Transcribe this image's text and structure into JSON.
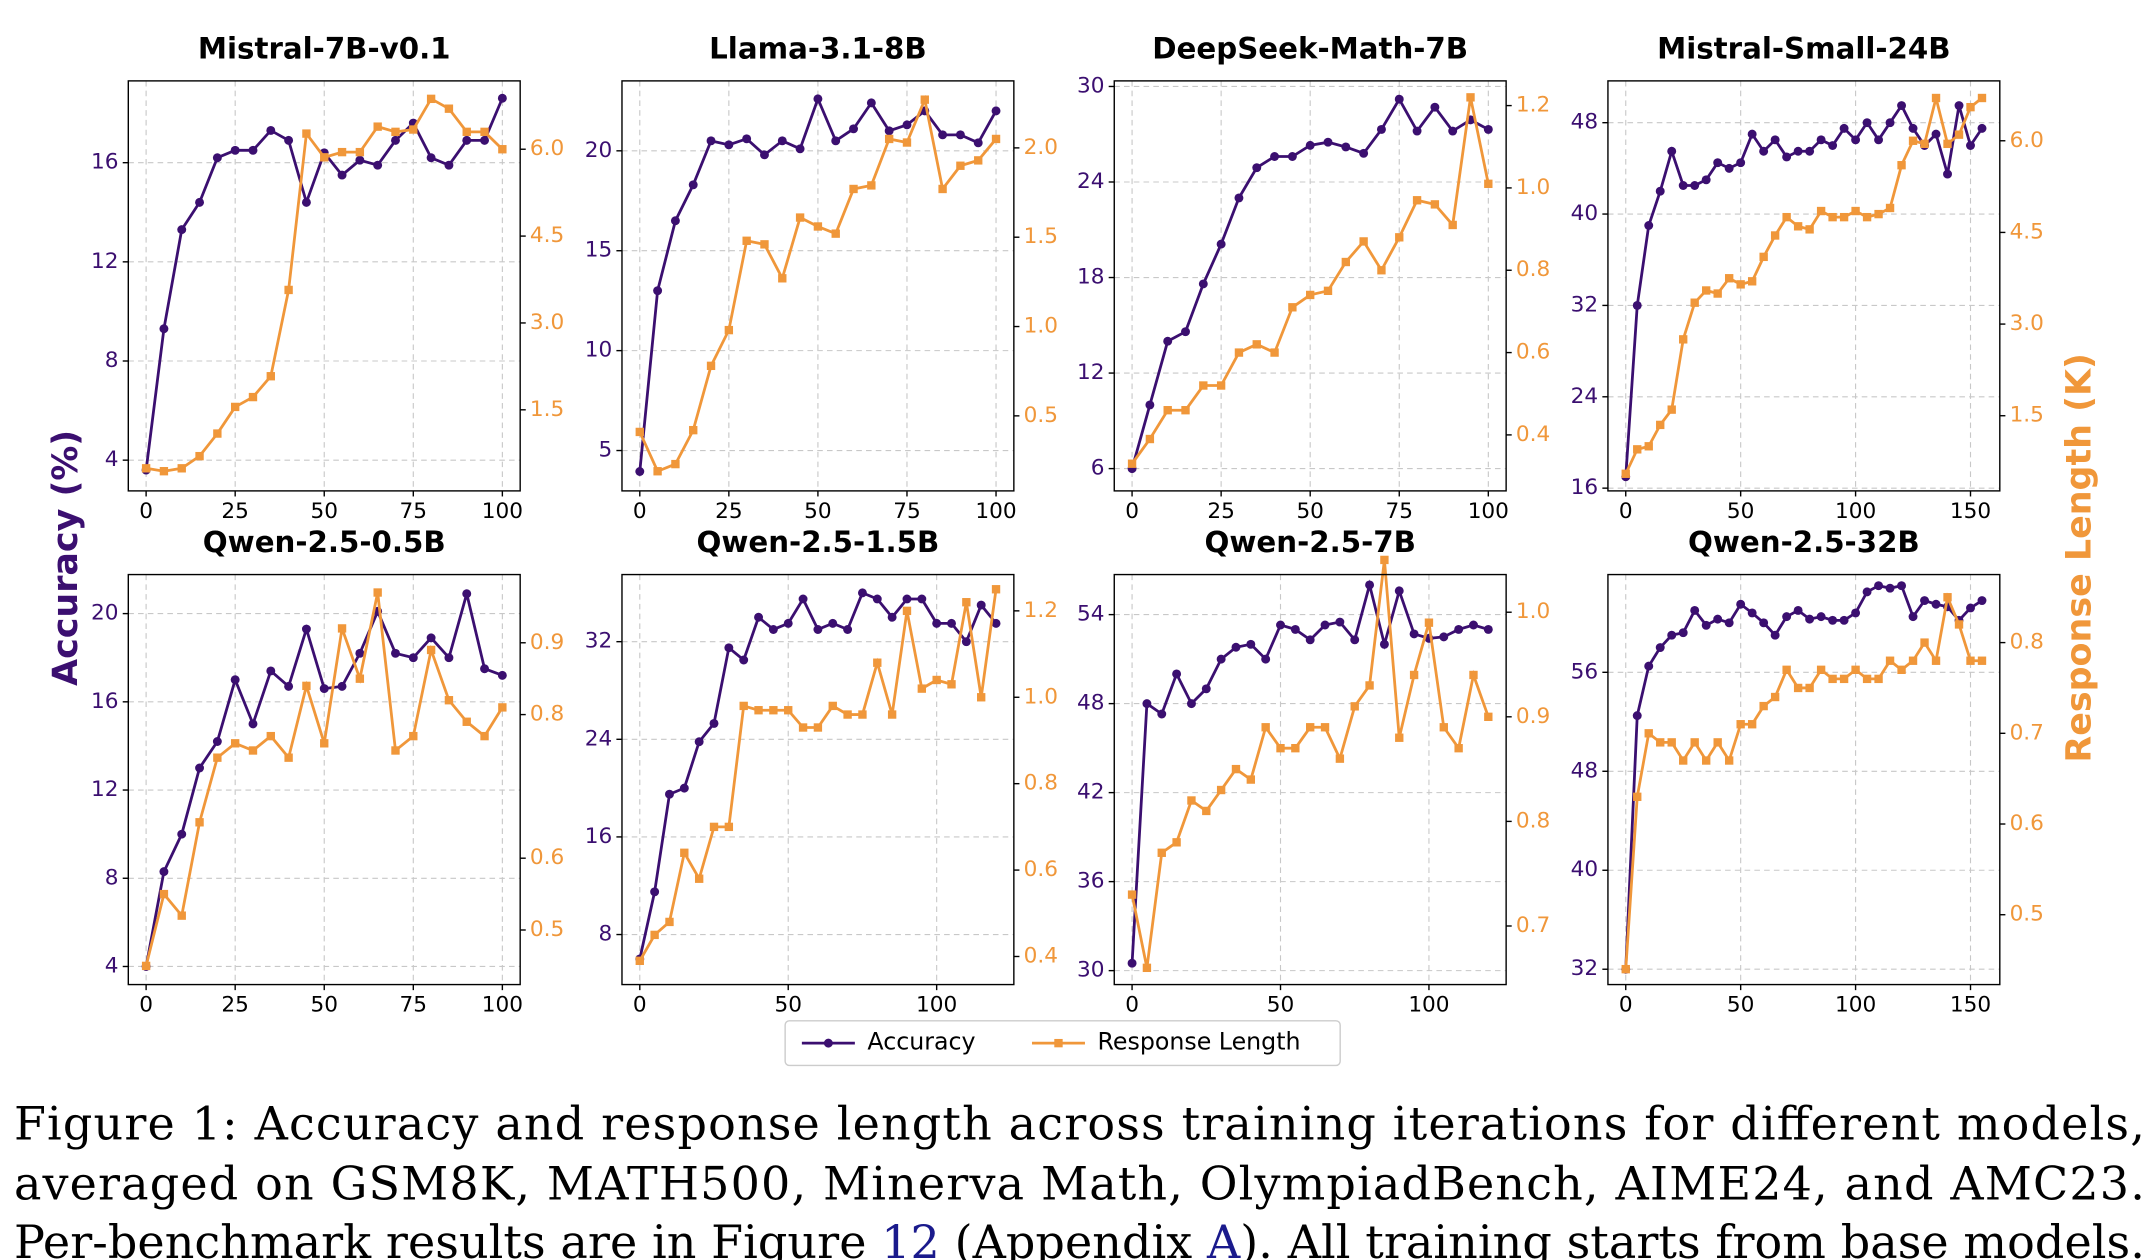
{
  "chart_data": [
    {
      "type": "line",
      "title": "Mistral-7B-v0.1",
      "grid": true,
      "x": [
        0,
        5,
        10,
        15,
        20,
        25,
        30,
        35,
        40,
        45,
        50,
        55,
        60,
        65,
        70,
        75,
        80,
        85,
        90,
        95,
        100
      ],
      "xlim": [
        -5,
        105
      ],
      "xticks": [
        0,
        25,
        50,
        75,
        100
      ],
      "ylim": [
        2.76,
        19.3
      ],
      "yticks": [
        4,
        8,
        12,
        16
      ],
      "y2lim": [
        0.1,
        7.18
      ],
      "y2ticks": [
        1.5,
        {
          "value": 3,
          "label": "3.0"
        },
        4.5,
        {
          "value": 6,
          "label": "6.0"
        }
      ],
      "series": [
        {
          "name": "Accuracy",
          "color": "#3b0f70",
          "marker": "circle",
          "values": [
            3.6,
            9.3,
            13.3,
            14.4,
            16.2,
            16.5,
            16.5,
            17.3,
            16.9,
            14.4,
            16.4,
            15.5,
            16.1,
            15.9,
            16.9,
            17.6,
            16.2,
            15.9,
            16.9,
            16.9,
            18.6
          ]
        },
        {
          "name": "Response Length",
          "color": "#f0973a",
          "marker": "square",
          "axis": "y2",
          "values": [
            0.49,
            0.44,
            0.49,
            0.7,
            1.09,
            1.55,
            1.72,
            2.08,
            3.57,
            6.27,
            5.86,
            5.95,
            5.95,
            6.39,
            6.3,
            6.34,
            6.87,
            6.7,
            6.3,
            6.3,
            6.0
          ]
        }
      ]
    },
    {
      "type": "line",
      "title": "Llama-3.1-8B",
      "grid": true,
      "x": [
        0,
        5,
        10,
        15,
        20,
        25,
        30,
        35,
        40,
        45,
        50,
        55,
        60,
        65,
        70,
        75,
        80,
        85,
        90,
        95,
        100
      ],
      "xlim": [
        -5,
        105
      ],
      "xticks": [
        0,
        25,
        50,
        75,
        100
      ],
      "ylim": [
        2.98,
        23.5
      ],
      "yticks": [
        5,
        10,
        15,
        20
      ],
      "y2lim": [
        0.08,
        2.375
      ],
      "y2ticks": [
        0.5,
        {
          "value": 1,
          "label": "1.0"
        },
        1.5,
        {
          "value": 2,
          "label": "2.0"
        }
      ],
      "series": [
        {
          "name": "Accuracy",
          "color": "#3b0f70",
          "marker": "circle",
          "values": [
            3.95,
            13,
            16.5,
            18.3,
            20.5,
            20.3,
            20.6,
            19.8,
            20.5,
            20.1,
            22.6,
            20.5,
            21.1,
            22.4,
            21,
            21.3,
            22,
            20.8,
            20.8,
            20.4,
            22
          ]
        },
        {
          "name": "Response Length",
          "color": "#f0973a",
          "marker": "square",
          "axis": "y2",
          "values": [
            0.41,
            0.19,
            0.23,
            0.42,
            0.78,
            0.98,
            1.48,
            1.46,
            1.27,
            1.61,
            1.56,
            1.52,
            1.77,
            1.79,
            2.05,
            2.03,
            2.27,
            1.77,
            1.9,
            1.93,
            2.05
          ]
        }
      ]
    },
    {
      "type": "line",
      "title": "DeepSeek-Math-7B",
      "grid": true,
      "x": [
        0,
        5,
        10,
        15,
        20,
        25,
        30,
        35,
        40,
        45,
        50,
        55,
        60,
        65,
        70,
        75,
        80,
        85,
        90,
        95,
        100
      ],
      "xlim": [
        -5,
        105
      ],
      "xticks": [
        0,
        25,
        50,
        75,
        100
      ],
      "ylim": [
        4.6,
        30.35
      ],
      "yticks": [
        6,
        12,
        18,
        24,
        30
      ],
      "y2lim": [
        0.264,
        1.26
      ],
      "y2ticks": [
        0.4,
        0.6,
        0.8,
        {
          "value": 1,
          "label": "1.0"
        },
        1.2
      ],
      "series": [
        {
          "name": "Accuracy",
          "color": "#3b0f70",
          "marker": "circle",
          "values": [
            6,
            10,
            14,
            14.6,
            17.6,
            20.1,
            23,
            24.9,
            25.6,
            25.6,
            26.3,
            26.5,
            26.2,
            25.8,
            27.3,
            29.2,
            27.2,
            28.7,
            27.2,
            27.9,
            27.3
          ]
        },
        {
          "name": "Response Length",
          "color": "#f0973a",
          "marker": "square",
          "axis": "y2",
          "values": [
            0.33,
            0.39,
            0.46,
            0.46,
            0.52,
            0.52,
            0.6,
            0.62,
            0.6,
            0.71,
            0.74,
            0.75,
            0.82,
            0.87,
            0.8,
            0.88,
            0.97,
            0.96,
            0.91,
            1.22,
            1.01
          ]
        }
      ]
    },
    {
      "type": "line",
      "title": "Mistral-Small-24B",
      "grid": true,
      "x": [
        0,
        5,
        10,
        15,
        20,
        25,
        30,
        35,
        40,
        45,
        50,
        55,
        60,
        65,
        70,
        75,
        80,
        85,
        90,
        95,
        100,
        105,
        110,
        115,
        120,
        125,
        130,
        135,
        140,
        145,
        150,
        155
      ],
      "xlim": [
        -7.75,
        162.75
      ],
      "xticks": [
        0,
        50,
        100,
        150
      ],
      "ylim": [
        15.76,
        51.66
      ],
      "yticks": [
        16,
        24,
        32,
        40,
        48
      ],
      "y2lim": [
        0.27,
        6.98
      ],
      "y2ticks": [
        1.5,
        {
          "value": 3,
          "label": "3.0"
        },
        4.5,
        {
          "value": 6,
          "label": "6.0"
        }
      ],
      "series": [
        {
          "name": "Accuracy",
          "color": "#3b0f70",
          "marker": "circle",
          "values": [
            17,
            32,
            39,
            42,
            45.5,
            42.5,
            42.5,
            43,
            44.5,
            44,
            44.5,
            47,
            45.5,
            46.5,
            45,
            45.5,
            45.5,
            46.5,
            46,
            47.5,
            46.5,
            48,
            46.5,
            48,
            49.5,
            47.5,
            46,
            47,
            43.5,
            49.5,
            46,
            47.5
          ]
        },
        {
          "name": "Response Length",
          "color": "#f0973a",
          "marker": "square",
          "axis": "y2",
          "values": [
            0.55,
            0.95,
            1.0,
            1.35,
            1.6,
            2.75,
            3.35,
            3.55,
            3.5,
            3.75,
            3.65,
            3.7,
            4.1,
            4.45,
            4.75,
            4.6,
            4.55,
            4.85,
            4.75,
            4.75,
            4.85,
            4.75,
            4.8,
            4.9,
            5.6,
            6.0,
            5.95,
            6.7,
            5.95,
            6.1,
            6.55,
            6.7
          ]
        }
      ]
    },
    {
      "type": "line",
      "title": "Qwen-2.5-0.5B",
      "grid": true,
      "x": [
        0,
        5,
        10,
        15,
        20,
        25,
        30,
        35,
        40,
        45,
        50,
        55,
        60,
        65,
        70,
        75,
        80,
        85,
        90,
        95,
        100
      ],
      "xlim": [
        -5,
        105
      ],
      "xticks": [
        0,
        25,
        50,
        75,
        100
      ],
      "ylim": [
        3.18,
        21.77
      ],
      "yticks": [
        4,
        8,
        12,
        16,
        20
      ],
      "y2lim": [
        0.424,
        0.995
      ],
      "y2ticks": [
        0.5,
        0.6,
        0.8,
        0.9
      ],
      "series": [
        {
          "name": "Accuracy",
          "color": "#3b0f70",
          "marker": "circle",
          "values": [
            4,
            8.3,
            10,
            13,
            14.2,
            17,
            15,
            17.4,
            16.7,
            19.3,
            16.6,
            16.7,
            18.2,
            20.1,
            18.2,
            18,
            18.9,
            18,
            20.9,
            17.5,
            17.2
          ]
        },
        {
          "name": "Response Length",
          "color": "#f0973a",
          "marker": "square",
          "axis": "y2",
          "values": [
            0.45,
            0.55,
            0.52,
            0.65,
            0.74,
            0.76,
            0.75,
            0.77,
            0.74,
            0.84,
            0.76,
            0.92,
            0.85,
            0.97,
            0.75,
            0.77,
            0.89,
            0.82,
            0.79,
            0.77,
            0.81
          ]
        }
      ]
    },
    {
      "type": "line",
      "title": "Qwen-2.5-1.5B",
      "grid": true,
      "x": [
        0,
        5,
        10,
        15,
        20,
        25,
        30,
        35,
        40,
        45,
        50,
        55,
        60,
        65,
        70,
        75,
        80,
        85,
        90,
        95,
        100,
        105,
        110,
        115,
        120
      ],
      "xlim": [
        -6,
        126
      ],
      "xticks": [
        0,
        50,
        100
      ],
      "ylim": [
        3.9,
        37.5
      ],
      "yticks": [
        8,
        16,
        24,
        32
      ],
      "y2lim": [
        0.335,
        1.284
      ],
      "y2ticks": [
        0.4,
        0.6,
        0.8,
        {
          "value": 1,
          "label": "1.0"
        },
        1.2
      ],
      "series": [
        {
          "name": "Accuracy",
          "color": "#3b0f70",
          "marker": "circle",
          "values": [
            6,
            11.5,
            19.5,
            20,
            23.8,
            25.3,
            31.5,
            30.5,
            34,
            33,
            33.5,
            35.5,
            33,
            33.5,
            33,
            36,
            35.5,
            34,
            35.5,
            35.5,
            33.5,
            33.5,
            32,
            35,
            33.5
          ]
        },
        {
          "name": "Response Length",
          "color": "#f0973a",
          "marker": "square",
          "axis": "y2",
          "values": [
            0.39,
            0.45,
            0.48,
            0.64,
            0.58,
            0.7,
            0.7,
            0.98,
            0.97,
            0.97,
            0.97,
            0.93,
            0.93,
            0.98,
            0.96,
            0.96,
            1.08,
            0.96,
            1.2,
            1.02,
            1.04,
            1.03,
            1.22,
            1.0,
            1.25
          ]
        }
      ]
    },
    {
      "type": "line",
      "title": "Qwen-2.5-7B",
      "grid": true,
      "x": [
        0,
        5,
        10,
        15,
        20,
        25,
        30,
        35,
        40,
        45,
        50,
        55,
        60,
        65,
        70,
        75,
        80,
        85,
        90,
        95,
        100,
        105,
        110,
        115,
        120
      ],
      "xlim": [
        -6,
        126
      ],
      "xticks": [
        0,
        50,
        100
      ],
      "ylim": [
        29.06,
        56.7
      ],
      "yticks": [
        30,
        36,
        42,
        48,
        54
      ],
      "y2lim": [
        0.644,
        1.036
      ],
      "y2ticks": [
        0.7,
        0.8,
        0.9,
        {
          "value": 1,
          "label": "1.0"
        }
      ],
      "series": [
        {
          "name": "Accuracy",
          "color": "#3b0f70",
          "marker": "circle",
          "values": [
            30.5,
            48,
            47.3,
            50,
            48,
            49,
            51,
            51.8,
            52,
            51,
            53.3,
            53,
            52.3,
            53.3,
            53.5,
            52.3,
            56,
            52,
            55.6,
            52.7,
            52.4,
            52.5,
            53,
            53.3,
            53
          ]
        },
        {
          "name": "Response Length",
          "color": "#f0973a",
          "marker": "square",
          "axis": "y2",
          "values": [
            0.73,
            0.66,
            0.77,
            0.78,
            0.82,
            0.81,
            0.83,
            0.85,
            0.84,
            0.89,
            0.87,
            0.87,
            0.89,
            0.89,
            0.86,
            0.91,
            0.93,
            1.05,
            0.88,
            0.94,
            0.99,
            0.89,
            0.87,
            0.94,
            0.9
          ]
        }
      ]
    },
    {
      "type": "line",
      "title": "Qwen-2.5-32B",
      "grid": true,
      "x": [
        0,
        5,
        10,
        15,
        20,
        25,
        30,
        35,
        40,
        45,
        50,
        55,
        60,
        65,
        70,
        75,
        80,
        85,
        90,
        95,
        100,
        105,
        110,
        115,
        120,
        125,
        130,
        135,
        140,
        145,
        150,
        155
      ],
      "xlim": [
        -7.75,
        162.75
      ],
      "xticks": [
        0,
        50,
        100,
        150
      ],
      "ylim": [
        30.76,
        63.9
      ],
      "yticks": [
        32,
        40,
        48,
        56
      ],
      "y2lim": [
        0.423,
        0.875
      ],
      "y2ticks": [
        0.5,
        0.6,
        0.7,
        0.8
      ],
      "series": [
        {
          "name": "Accuracy",
          "color": "#3b0f70",
          "marker": "circle",
          "values": [
            32,
            52.5,
            56.5,
            58,
            59,
            59.2,
            61,
            59.8,
            60.3,
            60,
            61.5,
            60.8,
            60,
            59,
            60.5,
            61,
            60.3,
            60.5,
            60.2,
            60.2,
            60.8,
            62.5,
            63,
            62.8,
            63,
            60.5,
            61.8,
            61.5,
            61.3,
            60.2,
            61.2,
            61.8
          ]
        },
        {
          "name": "Response Length",
          "color": "#f0973a",
          "marker": "square",
          "axis": "y2",
          "values": [
            0.44,
            0.63,
            0.7,
            0.69,
            0.69,
            0.67,
            0.69,
            0.67,
            0.69,
            0.67,
            0.71,
            0.71,
            0.73,
            0.74,
            0.77,
            0.75,
            0.75,
            0.77,
            0.76,
            0.76,
            0.77,
            0.76,
            0.76,
            0.78,
            0.77,
            0.78,
            0.8,
            0.78,
            0.85,
            0.82,
            0.78,
            0.78
          ]
        }
      ]
    }
  ],
  "figure": {
    "ylabel": "Accuracy (%)",
    "y2label": "Response Length (K)",
    "link_color": "#1a1a8c",
    "caption": [
      [
        {
          "text": "Figure 1:  Accuracy and response length across training iterations for different models,"
        }
      ],
      [
        {
          "text": "averaged on GSM8K, MATH500, Minerva Math, OlympiadBench, AIME24, and AMC23."
        }
      ],
      [
        {
          "text": "Per-benchmark results are in Figure "
        },
        {
          "text": "12",
          "link": true
        },
        {
          "text": " (Appendix "
        },
        {
          "text": "A",
          "link": true
        },
        {
          "text": "). All training starts from base models."
        }
      ]
    ]
  }
}
